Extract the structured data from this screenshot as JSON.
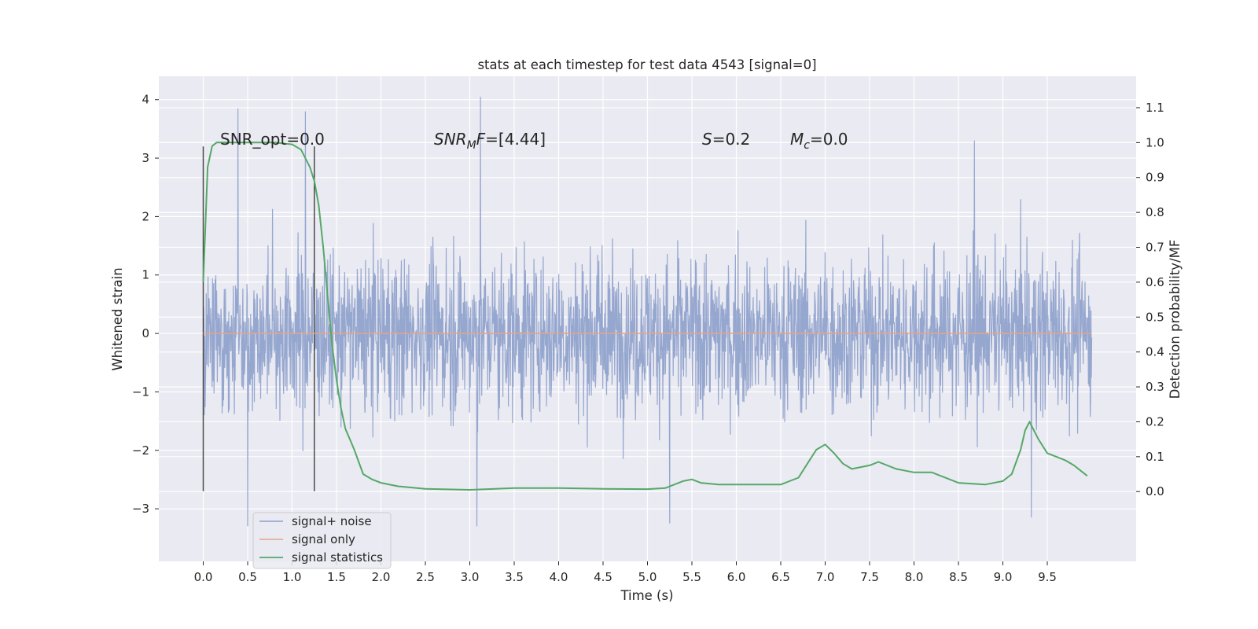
{
  "chart_data": {
    "type": "line",
    "title": "stats at each timestep for test data 4543 [signal=0]",
    "xlabel": "Time (s)",
    "ylabel_left": "Whitened strain",
    "ylabel_right": "Detection probability/MF",
    "xlim": [
      -0.5,
      10.5
    ],
    "ylim_left": [
      -3.9,
      4.4
    ],
    "ylim_right": [
      -0.2,
      1.19
    ],
    "x_ticks": [
      "0.0",
      "0.5",
      "1.0",
      "1.5",
      "2.0",
      "2.5",
      "3.0",
      "3.5",
      "4.0",
      "4.5",
      "5.0",
      "5.5",
      "6.0",
      "6.5",
      "7.0",
      "7.5",
      "8.0",
      "8.5",
      "9.0",
      "9.5"
    ],
    "y_ticks_left": [
      "4",
      "3",
      "2",
      "1",
      "0",
      "−1",
      "−2",
      "−3"
    ],
    "y_ticks_right": [
      "1.1",
      "1.0",
      "0.9",
      "0.8",
      "0.7",
      "0.6",
      "0.5",
      "0.4",
      "0.3",
      "0.2",
      "0.1",
      "0.0"
    ],
    "grid": true,
    "legend_position": "lower-left",
    "annotations": {
      "snr_opt": "SNR_opt=0.0",
      "snr_mf_value": "=[4.44]",
      "s_value": "=0.2",
      "mc_value": "=0.0"
    },
    "vertical_markers": [
      {
        "x": 0.0,
        "y_range": [
          -2.7,
          3.2
        ]
      },
      {
        "x": 1.25,
        "y_range": [
          -2.7,
          3.2
        ]
      }
    ],
    "series": [
      {
        "name": "signal+ noise",
        "axis": "left",
        "color": "#8da0cb",
        "note": "whitened strain noise, approx. bounded ±2.3 with peaks",
        "peaks": [
          {
            "x": 0.39,
            "y": 3.85
          },
          {
            "x": 1.15,
            "y": 3.8
          },
          {
            "x": 3.12,
            "y": 4.05
          },
          {
            "x": 8.68,
            "y": 3.3
          },
          {
            "x": 0.5,
            "y": -3.3
          },
          {
            "x": 3.08,
            "y": -3.3
          },
          {
            "x": 5.25,
            "y": -3.25
          },
          {
            "x": 9.32,
            "y": -3.15
          }
        ]
      },
      {
        "name": "signal only",
        "axis": "left",
        "color": "#e5a487",
        "x": [
          0.0,
          10.0
        ],
        "y": [
          0.0,
          0.0
        ]
      },
      {
        "name": "signal statistics",
        "axis": "right",
        "color": "#55a868",
        "x": [
          0.0,
          0.05,
          0.1,
          0.15,
          0.25,
          0.5,
          0.8,
          1.0,
          1.1,
          1.2,
          1.25,
          1.3,
          1.35,
          1.4,
          1.45,
          1.5,
          1.55,
          1.6,
          1.7,
          1.8,
          1.9,
          2.0,
          2.2,
          2.5,
          3.0,
          3.5,
          4.0,
          4.5,
          5.0,
          5.2,
          5.4,
          5.5,
          5.6,
          5.8,
          6.0,
          6.5,
          6.7,
          6.8,
          6.9,
          7.0,
          7.1,
          7.2,
          7.3,
          7.5,
          7.6,
          7.8,
          8.0,
          8.2,
          8.5,
          8.8,
          9.0,
          9.1,
          9.2,
          9.25,
          9.3,
          9.4,
          9.5,
          9.6,
          9.7,
          9.8,
          9.9,
          9.95
        ],
        "y": [
          0.6,
          0.93,
          0.99,
          1.0,
          1.0,
          1.0,
          1.0,
          0.995,
          0.98,
          0.93,
          0.89,
          0.82,
          0.7,
          0.56,
          0.42,
          0.32,
          0.24,
          0.18,
          0.12,
          0.05,
          0.035,
          0.025,
          0.015,
          0.008,
          0.005,
          0.01,
          0.01,
          0.008,
          0.007,
          0.01,
          0.03,
          0.035,
          0.025,
          0.02,
          0.02,
          0.02,
          0.04,
          0.08,
          0.12,
          0.135,
          0.11,
          0.08,
          0.065,
          0.075,
          0.085,
          0.065,
          0.055,
          0.055,
          0.025,
          0.02,
          0.03,
          0.05,
          0.12,
          0.175,
          0.2,
          0.15,
          0.11,
          0.1,
          0.09,
          0.075,
          0.055,
          0.045
        ]
      }
    ]
  }
}
